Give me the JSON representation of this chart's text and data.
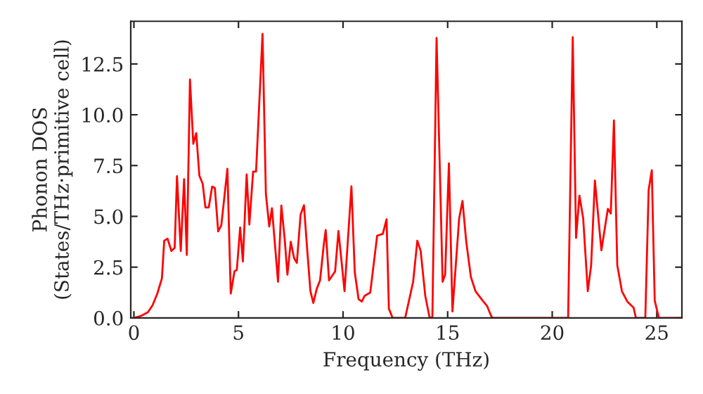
{
  "chart_data": {
    "type": "line",
    "xlabel": "Frequency (THz)",
    "ylabel": "Phonon DOS\n(States/THz·primitive cell)",
    "x": [
      0,
      0.34,
      0.67,
      0.89,
      1.12,
      1.34,
      1.45,
      1.61,
      1.79,
      1.95,
      2.06,
      2.24,
      2.4,
      2.53,
      2.68,
      2.84,
      2.98,
      3.13,
      3.29,
      3.42,
      3.58,
      3.74,
      3.87,
      4.03,
      4.18,
      4.47,
      4.63,
      4.81,
      4.92,
      5.08,
      5.21,
      5.39,
      5.52,
      5.7,
      5.84,
      6.15,
      6.31,
      6.47,
      6.6,
      6.89,
      7.05,
      7.21,
      7.34,
      7.5,
      7.66,
      7.79,
      7.97,
      8.13,
      8.29,
      8.44,
      8.58,
      8.74,
      8.9,
      9.08,
      9.17,
      9.33,
      9.62,
      9.78,
      10.07,
      10.4,
      10.56,
      10.74,
      10.9,
      11.03,
      11.3,
      11.63,
      11.9,
      12.08,
      12.19,
      12.37,
      12.97,
      13.35,
      13.55,
      13.71,
      13.93,
      14.14,
      14.27,
      14.47,
      14.76,
      14.88,
      15.06,
      15.23,
      15.55,
      15.71,
      15.89,
      16.11,
      16.33,
      16.67,
      16.89,
      17.1,
      17.2,
      20.76,
      20.98,
      21.14,
      21.3,
      21.48,
      21.7,
      21.86,
      22.04,
      22.35,
      22.66,
      22.8,
      22.95,
      23.11,
      23.33,
      23.6,
      23.89,
      24.0,
      24.45,
      24.61,
      24.76,
      24.9,
      25.1,
      26.2
    ],
    "series": [
      {
        "color": "#ff0000",
        "values": [
          0,
          0.1,
          0.28,
          0.62,
          1.2,
          1.95,
          3.8,
          3.9,
          3.3,
          3.45,
          6.98,
          3.3,
          6.83,
          3.1,
          11.74,
          8.57,
          9.1,
          7.0,
          6.6,
          5.44,
          5.44,
          6.46,
          6.4,
          4.26,
          4.56,
          7.34,
          1.2,
          2.3,
          2.36,
          4.45,
          2.78,
          7.06,
          4.6,
          7.2,
          7.2,
          13.98,
          6.11,
          4.5,
          5.4,
          1.78,
          5.53,
          3.87,
          2.13,
          3.75,
          2.94,
          2.71,
          5.09,
          5.55,
          3.3,
          1.32,
          0.74,
          1.43,
          1.85,
          3.63,
          4.33,
          1.85,
          2.29,
          4.28,
          1.32,
          6.48,
          2.25,
          0.93,
          0.81,
          1.09,
          1.25,
          4.05,
          4.14,
          4.86,
          0.46,
          0,
          0,
          1.78,
          3.8,
          3.3,
          1.09,
          0,
          0.05,
          13.78,
          1.78,
          2.13,
          7.61,
          0.32,
          4.9,
          5.76,
          3.75,
          2.02,
          1.32,
          0.86,
          0.58,
          0.05,
          0,
          0,
          13.82,
          3.94,
          6.02,
          4.9,
          1.32,
          2.59,
          6.76,
          3.33,
          5.37,
          5.14,
          9.72,
          2.59,
          1.32,
          0.79,
          0.51,
          0,
          0,
          6.3,
          7.27,
          0.86,
          0,
          0
        ]
      }
    ],
    "xlim": [
      -0.15,
      26.2
    ],
    "ylim": [
      0,
      14.6
    ],
    "xticks": [
      0,
      5,
      10,
      15,
      20,
      25
    ],
    "yticks": [
      {
        "value": 0,
        "label": "0.0"
      },
      2.5,
      {
        "value": 5,
        "label": "5.0"
      },
      7.5,
      {
        "value": 10,
        "label": "10.0"
      },
      12.5
    ],
    "grid": false,
    "marker": "none",
    "line_style": "solid"
  }
}
